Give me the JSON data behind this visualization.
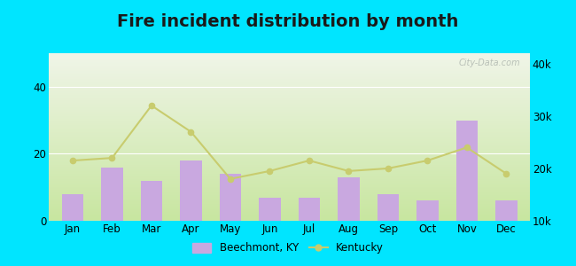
{
  "title": "Fire incident distribution by month",
  "months": [
    "Jan",
    "Feb",
    "Mar",
    "Apr",
    "May",
    "Jun",
    "Jul",
    "Aug",
    "Sep",
    "Oct",
    "Nov",
    "Dec"
  ],
  "beechmont_values": [
    8,
    16,
    12,
    18,
    14,
    7,
    7,
    13,
    8,
    6,
    30,
    6
  ],
  "kentucky_values": [
    21500,
    22000,
    32000,
    27000,
    18000,
    19500,
    21500,
    19500,
    20000,
    21500,
    24000,
    19000
  ],
  "bar_color": "#c9a8e0",
  "line_color": "#c8cc6e",
  "line_marker": "o",
  "background_outer": "#00e5ff",
  "bg_bottom_color": "#c8e6a0",
  "bg_top_color": "#f0f5e8",
  "left_ylim": [
    0,
    50
  ],
  "right_ylim": [
    10000,
    42000
  ],
  "left_yticks": [
    0,
    20,
    40
  ],
  "right_yticks": [
    10000,
    20000,
    30000,
    40000
  ],
  "right_yticklabels": [
    "10k",
    "20k",
    "30k",
    "40k"
  ],
  "title_fontsize": 14,
  "watermark": "City-Data.com",
  "legend_beechmont": "Beechmont, KY",
  "legend_kentucky": "Kentucky"
}
